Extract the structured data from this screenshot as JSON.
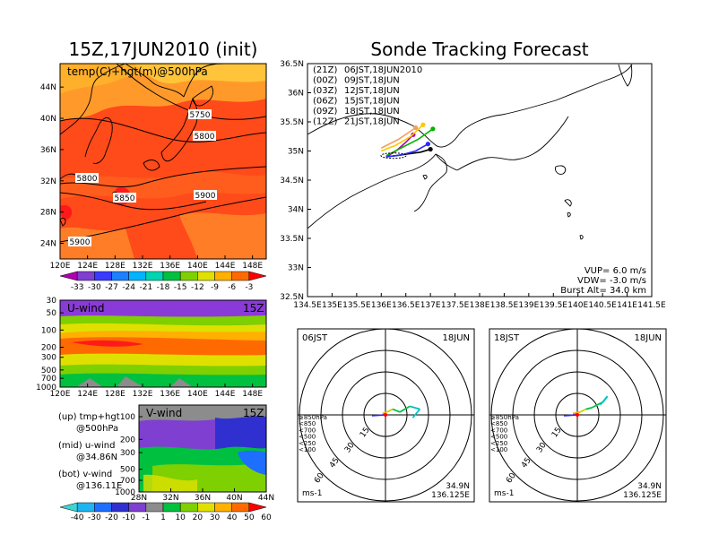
{
  "left_title": "15Z,17JUN2010 (init)",
  "main_title": "Sonde Tracking Forecast",
  "map_panel": {
    "label": "temp(C)+hgt(m)@500hPa",
    "lat_ticks": [
      "44N",
      "40N",
      "36N",
      "32N",
      "28N",
      "24N"
    ],
    "lon_ticks": [
      "120E",
      "124E",
      "128E",
      "132E",
      "136E",
      "140E",
      "144E",
      "148E"
    ],
    "contour_labels": [
      "5750",
      "5800",
      "5800",
      "5850",
      "5900",
      "5900"
    ],
    "colorbar_labels": [
      "-33",
      "-30",
      "-27",
      "-24",
      "-21",
      "-18",
      "-15",
      "-12",
      "-9",
      "-6",
      "-3"
    ],
    "colorbar_colors": [
      "#b000b0",
      "#7f3fd0",
      "#3a3aff",
      "#1e7fff",
      "#00b4ff",
      "#00d5b0",
      "#00c040",
      "#7fd000",
      "#e0e000",
      "#ffb000",
      "#ff6a00",
      "#ff0000"
    ]
  },
  "uwind_panel": {
    "label": "U-wind",
    "time": "15Z",
    "p_ticks": [
      "30",
      "50",
      "100",
      "200",
      "300",
      "500",
      "700",
      "1000"
    ],
    "lon_ticks": [
      "120E",
      "124E",
      "128E",
      "132E",
      "136E",
      "140E",
      "144E",
      "148E"
    ]
  },
  "vwind_panel": {
    "label": "V-wind",
    "time": "15Z",
    "p_ticks": [
      "100",
      "200",
      "300",
      "500",
      "700",
      "1000"
    ],
    "lat_ticks": [
      "28N",
      "32N",
      "36N",
      "40N",
      "44N"
    ]
  },
  "legend_notes": {
    "up_line1": "(up)  tmp+hgt",
    "up_line2": "@500hPa",
    "mid_line1": "(mid)  u-wind",
    "mid_line2": "@34.86N",
    "bot_line1": "(bot)  v-wind",
    "bot_line2": "@136.11E"
  },
  "wind_colorbar": {
    "labels": [
      "-40",
      "-30",
      "-20",
      "-10",
      "-1",
      "1",
      "10",
      "20",
      "30",
      "40",
      "50",
      "60"
    ],
    "colors": [
      "#3fd4d4",
      "#1eb4f0",
      "#1e6fff",
      "#3030d0",
      "#7f3fd0",
      "#8c8c8c",
      "#00c040",
      "#7fd000",
      "#e0e000",
      "#ffb000",
      "#ff6a00",
      "#ff0000"
    ]
  },
  "track_panel": {
    "lat_ticks": [
      "36.5N",
      "36N",
      "35.5N",
      "35N",
      "34.5N",
      "34N",
      "33.5N",
      "33N",
      "32.5N"
    ],
    "lon_ticks": [
      "134.5E",
      "135E",
      "135.5E",
      "136E",
      "136.5E",
      "137E",
      "137.5E",
      "138E",
      "138.5E",
      "139E",
      "139.5E",
      "140E",
      "140.5E",
      "141E",
      "141.5E"
    ],
    "legend": [
      {
        "code": "(21Z)",
        "text": "06JST,18JUN2010",
        "color": "#000000"
      },
      {
        "code": "(00Z)",
        "text": "09JST,18JUN",
        "color": "#b000b0"
      },
      {
        "code": "(03Z)",
        "text": "12JST,18JUN",
        "color": "#2828ff"
      },
      {
        "code": "(06Z)",
        "text": "15JST,18JUN",
        "color": "#00b400"
      },
      {
        "code": "(09Z)",
        "text": "18JST,18JUN",
        "color": "#ffc800"
      },
      {
        "code": "(12Z)",
        "text": "21JST,18JUN",
        "color": "#f0a060"
      }
    ],
    "vup": "VUP=  6.0  m/s",
    "vdw": "VDW=  -3.0  m/s",
    "burst": "Burst Alt=  34.0  km"
  },
  "hodograph_left": {
    "time_label": "06JST",
    "date_label": "18JUN",
    "ring_labels": [
      "15",
      "30",
      "45",
      "60"
    ],
    "units": "ms-1",
    "lat": "34.9N",
    "lon": "136.125E",
    "pressure_legend": [
      {
        "text": "≥850hPa",
        "color": "#ff0000"
      },
      {
        "text": "<850",
        "color": "#ffb000"
      },
      {
        "text": "<700",
        "color": "#d0d000"
      },
      {
        "text": "<500",
        "color": "#00c040"
      },
      {
        "text": "<250",
        "color": "#00c0c0"
      },
      {
        "text": "<100",
        "color": "#2828ff"
      }
    ]
  },
  "hodograph_right": {
    "time_label": "18JST",
    "date_label": "18JUN",
    "ring_labels": [
      "15",
      "30",
      "45",
      "60"
    ],
    "units": "ms-1",
    "lat": "34.9N",
    "lon": "136.125E",
    "pressure_legend": [
      {
        "text": "≥850hPa",
        "color": "#ff0000"
      },
      {
        "text": "<850",
        "color": "#ffb000"
      },
      {
        "text": "<700",
        "color": "#d0d000"
      },
      {
        "text": "<500",
        "color": "#00c040"
      },
      {
        "text": "<250",
        "color": "#00c0c0"
      },
      {
        "text": "<100",
        "color": "#2828ff"
      }
    ]
  },
  "chart_data": [
    {
      "type": "heatmap",
      "title": "15Z,17JUN2010 (init)",
      "subtitle": "temp(C)+hgt(m)@500hPa",
      "xlim": [
        120,
        150
      ],
      "ylim": [
        22,
        47
      ],
      "x_ticks": [
        "120E",
        "124E",
        "128E",
        "132E",
        "136E",
        "140E",
        "144E",
        "148E"
      ],
      "y_ticks": [
        "24N",
        "28N",
        "32N",
        "36N",
        "40N",
        "44N"
      ],
      "colorbar_levels": [
        -33,
        -30,
        -27,
        -24,
        -21,
        -18,
        -15,
        -12,
        -9,
        -6,
        -3
      ],
      "contour_levels_m": [
        5750,
        5800,
        5850,
        5900
      ]
    },
    {
      "type": "heatmap",
      "title": "U-wind",
      "xlim": [
        120,
        150
      ],
      "x_ticks": [
        "120E",
        "124E",
        "128E",
        "132E",
        "136E",
        "140E",
        "144E",
        "148E"
      ],
      "y_ticks_hPa": [
        30,
        50,
        100,
        200,
        300,
        500,
        700,
        1000
      ]
    },
    {
      "type": "heatmap",
      "title": "V-wind",
      "xlim": [
        28,
        44
      ],
      "x_ticks": [
        "28N",
        "32N",
        "36N",
        "40N",
        "44N"
      ],
      "y_ticks_hPa": [
        100,
        200,
        300,
        500,
        700,
        1000
      ],
      "colorbar_levels": [
        -40,
        -30,
        -20,
        -10,
        -1,
        1,
        10,
        20,
        30,
        40,
        50,
        60
      ]
    },
    {
      "type": "line",
      "title": "Sonde Tracking Forecast",
      "xlim": [
        134.5,
        141.5
      ],
      "ylim": [
        32.5,
        36.5
      ],
      "series": [
        {
          "name": "06JST,18JUN2010",
          "color": "#000000",
          "x": [
            136.1,
            136.3,
            136.55,
            136.8,
            137.0
          ],
          "y": [
            34.9,
            34.92,
            34.95,
            34.98,
            35.03
          ]
        },
        {
          "name": "09JST,18JUN",
          "color": "#b000b0",
          "x": [
            136.1,
            136.3,
            136.5,
            136.65
          ],
          "y": [
            34.9,
            35.0,
            35.15,
            35.28
          ]
        },
        {
          "name": "12JST,18JUN",
          "color": "#2828ff",
          "x": [
            136.1,
            136.4,
            136.7,
            136.95
          ],
          "y": [
            34.9,
            34.93,
            35.0,
            35.12
          ]
        },
        {
          "name": "15JST,18JUN",
          "color": "#00b400",
          "x": [
            136.1,
            136.4,
            136.75,
            137.05
          ],
          "y": [
            34.92,
            35.05,
            35.2,
            35.38
          ]
        },
        {
          "name": "18JST,18JUN",
          "color": "#ffc800",
          "x": [
            136.0,
            136.3,
            136.6,
            136.85
          ],
          "y": [
            35.0,
            35.1,
            35.25,
            35.45
          ]
        },
        {
          "name": "21JST,18JUN",
          "color": "#f0a060",
          "x": [
            136.0,
            136.35,
            136.7
          ],
          "y": [
            35.05,
            35.2,
            35.4
          ]
        }
      ]
    },
    {
      "type": "line",
      "title": "06JST 18JUN",
      "rings_ms": [
        15,
        30,
        45,
        60
      ],
      "u": [
        0,
        -2,
        1,
        5,
        10,
        17,
        24,
        19
      ],
      "v": [
        0,
        1,
        2,
        4,
        2,
        6,
        4,
        -2
      ]
    },
    {
      "type": "line",
      "title": "18JST 18JUN",
      "rings_ms": [
        15,
        30,
        45,
        60
      ],
      "u": [
        0,
        -3,
        2,
        6,
        10,
        18,
        21,
        16
      ],
      "v": [
        0,
        1,
        2,
        4,
        5,
        9,
        13,
        7
      ]
    }
  ]
}
